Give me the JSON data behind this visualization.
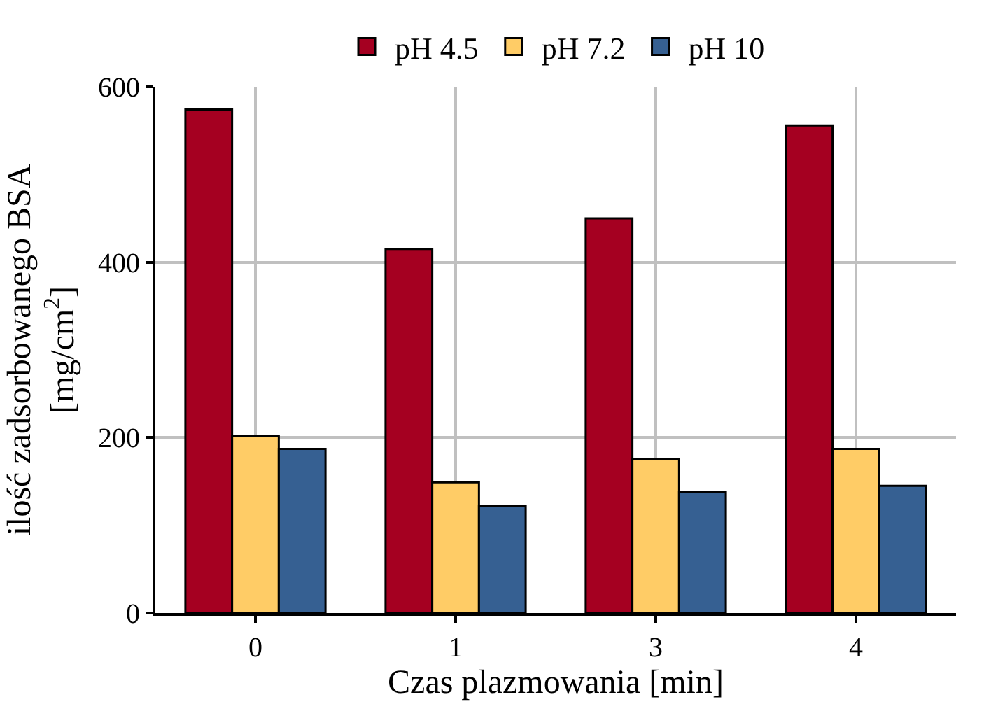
{
  "chart_data": {
    "type": "bar",
    "xlabel": "Czas plazmowania [min]",
    "ylabel": "ilość zadsorbowanego BSA [mg/cm$^{2}$]",
    "categories": [
      "0",
      "1",
      "3",
      "4"
    ],
    "series": [
      {
        "name": "pH 4.5",
        "color": "#a50021",
        "values": [
          574,
          415,
          450,
          556
        ]
      },
      {
        "name": "pH 7.2",
        "color": "#ffcc66",
        "values": [
          202,
          149,
          176,
          187
        ]
      },
      {
        "name": "pH 10",
        "color": "#366092",
        "values": [
          187,
          122,
          138,
          145
        ]
      }
    ],
    "ylim": [
      0,
      600
    ],
    "yticks": [
      0,
      200,
      400,
      600
    ],
    "grid": true,
    "legend": "top"
  }
}
